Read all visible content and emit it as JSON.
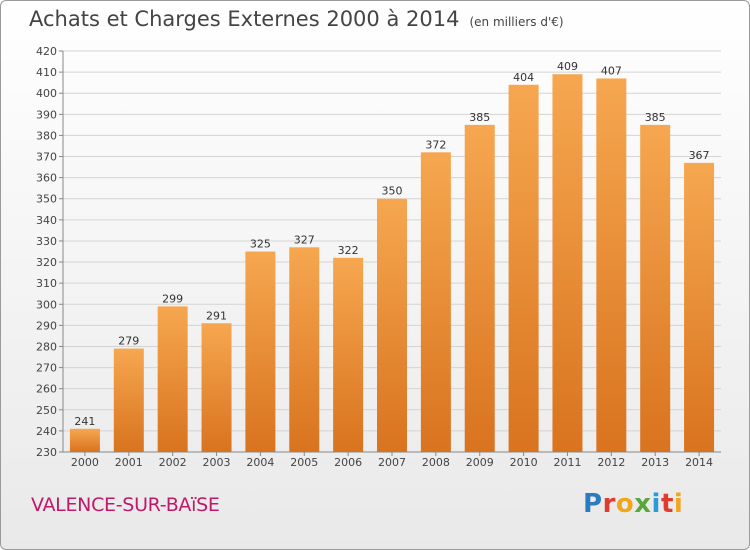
{
  "header": {
    "title": "Achats et Charges Externes 2000 à 2014",
    "subtitle": "(en milliers d'€)"
  },
  "footer": {
    "location": "VALENCE-SUR-BAïSE",
    "brand": "Proxiti"
  },
  "colors": {
    "bar_light": "#f6a750",
    "bar_dark": "#d9731f",
    "location": "#c0186a"
  },
  "chart_data": {
    "type": "bar",
    "title": "Achats et Charges Externes 2000 à 2014",
    "subtitle": "(en milliers d'€)",
    "xlabel": "",
    "ylabel": "",
    "categories": [
      "2000",
      "2001",
      "2002",
      "2003",
      "2004",
      "2005",
      "2006",
      "2007",
      "2008",
      "2009",
      "2010",
      "2011",
      "2012",
      "2013",
      "2014"
    ],
    "values": [
      241,
      279,
      299,
      291,
      325,
      327,
      322,
      350,
      372,
      385,
      404,
      409,
      407,
      385,
      367
    ],
    "ylim": [
      230,
      420
    ],
    "yticks": [
      230,
      240,
      250,
      260,
      270,
      280,
      290,
      300,
      310,
      320,
      330,
      340,
      350,
      360,
      370,
      380,
      390,
      400,
      410,
      420
    ],
    "grid": true,
    "data_labels": true
  }
}
